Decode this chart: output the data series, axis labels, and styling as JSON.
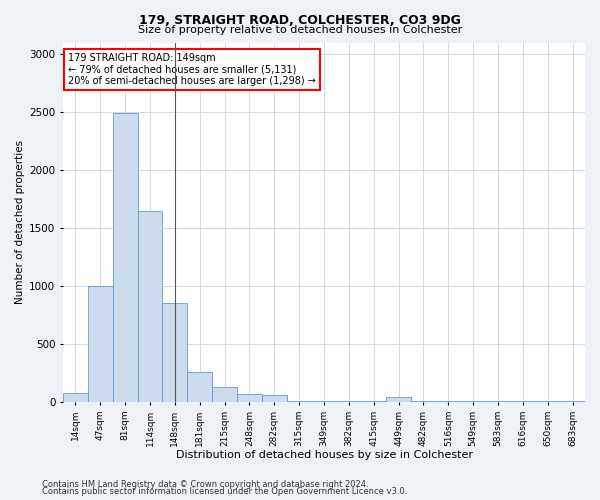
{
  "title1": "179, STRAIGHT ROAD, COLCHESTER, CO3 9DG",
  "title2": "Size of property relative to detached houses in Colchester",
  "xlabel": "Distribution of detached houses by size in Colchester",
  "ylabel": "Number of detached properties",
  "footer1": "Contains HM Land Registry data © Crown copyright and database right 2024.",
  "footer2": "Contains public sector information licensed under the Open Government Licence v3.0.",
  "annotation_line1": "179 STRAIGHT ROAD: 149sqm",
  "annotation_line2": "← 79% of detached houses are smaller (5,131)",
  "annotation_line3": "20% of semi-detached houses are larger (1,298) →",
  "bar_labels": [
    "14sqm",
    "47sqm",
    "81sqm",
    "114sqm",
    "148sqm",
    "181sqm",
    "215sqm",
    "248sqm",
    "282sqm",
    "315sqm",
    "349sqm",
    "382sqm",
    "415sqm",
    "449sqm",
    "482sqm",
    "516sqm",
    "549sqm",
    "583sqm",
    "616sqm",
    "650sqm",
    "683sqm"
  ],
  "bar_values": [
    75,
    1000,
    2490,
    1650,
    855,
    255,
    125,
    65,
    55,
    5,
    5,
    5,
    5,
    45,
    5,
    5,
    5,
    5,
    5,
    5,
    5
  ],
  "bar_color": "#ccdcee",
  "bar_edge_color": "#6699cc",
  "highlight_bar_index": 4,
  "ylim": [
    0,
    3100
  ],
  "yticks": [
    0,
    500,
    1000,
    1500,
    2000,
    2500,
    3000
  ],
  "bg_color": "#eef2f7",
  "plot_bg_color": "#ffffff",
  "grid_color": "#c8d4e0"
}
